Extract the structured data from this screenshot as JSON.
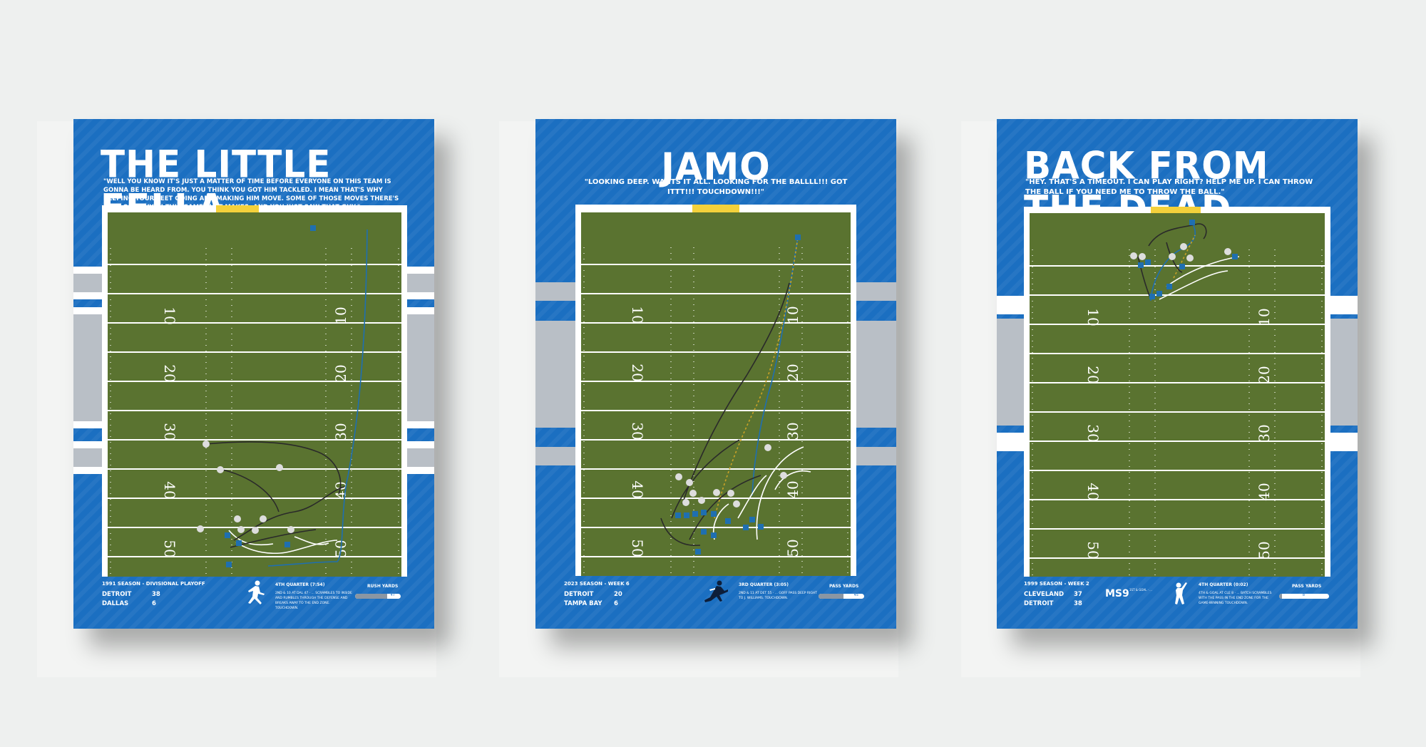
{
  "posters": [
    {
      "title": "THE LITTLE FELLA",
      "quote": "\"WELL YOU KNOW IT'S JUST A MATTER OF TIME BEFORE EVERYONE ON THIS TEAM IS GONNA BE HEARD FROM. YOU THINK YOU GOT HIM TACKLED. I MEAN THAT'S WHY KEEPING YOUR FEET GOING AND MAKING HIM MOVE. SOME OF THOSE MOVES THERE'S ONLY ONE GUY IN THIS GAME THAT MAKES. AND YOU JUST SAW THAT GUY.\"",
      "season": "1991 SEASON - DIVISIONAL PLAYOFF",
      "teams": [
        {
          "name": "DETROIT",
          "score": "38"
        },
        {
          "name": "DALLAS",
          "score": "6"
        }
      ],
      "quarter": "4TH QUARTER (7:54)",
      "description": "2ND & 10 AT DAL 47 · ... SCRAMBLES TO INSIDE AND RUMBLES THROUGH THE DEFENSE AND BREAKS AWAY TO THE END ZONE. TOUCHDOWN.",
      "stat_label": "RUSH YARDS",
      "stat_value": "47",
      "stat_fraction": 0.7
    },
    {
      "title": "JAMO",
      "quote": "\"LOOKING DEEP. WANTS IT ALL. LOOKING FOR THE BALLLL!!! GOT ITTT!!! TOUCHDOWN!!!\"",
      "season": "2023 SEASON - WEEK 6",
      "teams": [
        {
          "name": "DETROIT",
          "score": "20"
        },
        {
          "name": "TAMPA BAY",
          "score": "6"
        }
      ],
      "quarter": "3RD QUARTER (3:05)",
      "description": "2ND & 11 AT DET 55 · ... GOFF PASS DEEP RIGHT TO J. WILLIAMS. TOUCHDOWN.",
      "stat_label": "PASS YARDS",
      "stat_value": "45",
      "stat_fraction": 0.55
    },
    {
      "title": "BACK FROM THE DEAD",
      "quote": "\"HEY. THAT'S A TIMEOUT. I CAN PLAY RIGHT? HELP ME UP. I CAN THROW THE BALL IF YOU NEED ME TO THROW THE BALL.\"",
      "season": "1999 SEASON - WEEK 2",
      "teams": [
        {
          "name": "CLEVELAND",
          "score": "37"
        },
        {
          "name": "DETROIT",
          "score": "38"
        }
      ],
      "logo_text": "MS9",
      "logo_sub": "1ST & GOAL · ...",
      "quarter": "4TH QUARTER (0:02)",
      "description": "4TH & GOAL AT CLE 8 · ... BATCH SCRAMBLES WITH THE PASS IN THE END ZONE FOR THE GAME-WINNING TOUCHDOWN.",
      "stat_label": "PASS YARDS",
      "stat_value": "8",
      "stat_fraction": 0.05
    }
  ],
  "yard_numbers": [
    "10",
    "20",
    "30",
    "40",
    "50"
  ],
  "colors": {
    "poster_blue": "#1b6fc1",
    "turf": "#5a7330",
    "band_gray": "#b9bfc6",
    "goalpost": "#f4d13b"
  }
}
